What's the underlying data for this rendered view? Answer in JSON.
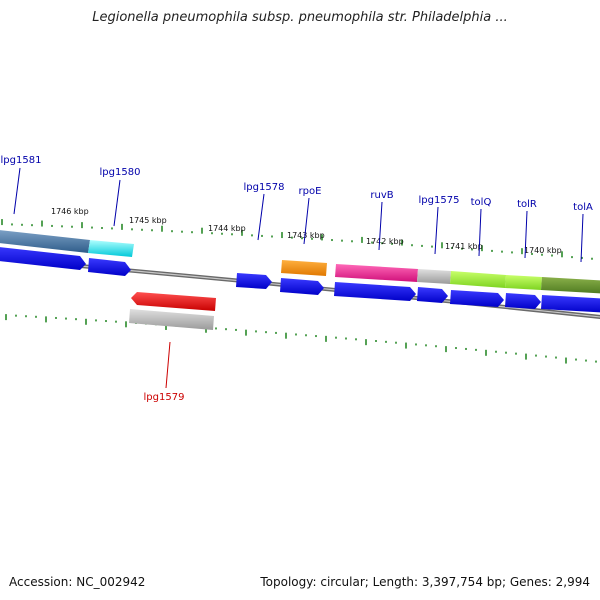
{
  "title": "Legionella pneumophila subsp. pneumophila str. Philadelphia ...",
  "footer": {
    "accession": "Accession: NC_002942",
    "summary": "Topology: circular; Length: 3,397,754 bp; Genes: 2,994"
  },
  "colors": {
    "backbone": "#888888",
    "tick": "#2a8a2a",
    "label_blue": "#0000aa",
    "label_red": "#cc0000"
  },
  "scale_labels": [
    "1746 kbp",
    "1745 kbp",
    "1744 kbp",
    "1743 kbp",
    "1742 kbp",
    "1741 kbp",
    "1740 kbp"
  ],
  "gene_labels": [
    "lpg1581",
    "lpg1580",
    "lpg1578",
    "rpoE",
    "ruvB",
    "lpg1575",
    "tolQ",
    "tolR",
    "tolA",
    "lpg1579"
  ]
}
